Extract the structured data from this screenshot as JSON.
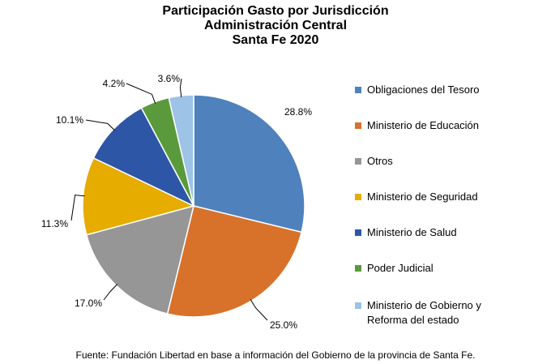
{
  "chart_data": {
    "type": "pie",
    "title": [
      "Participación Gasto por Jurisdicción",
      "Administración Central",
      "Santa Fe 2020"
    ],
    "slices": [
      {
        "name": "Obligaciones del Tesoro",
        "value": 28.8,
        "label": "28.8%",
        "color": "#4F81BD"
      },
      {
        "name": "Ministerio de Educación",
        "value": 25.0,
        "label": "25.0%",
        "color": "#D8722B"
      },
      {
        "name": "Otros",
        "value": 17.0,
        "label": "17.0%",
        "color": "#969696"
      },
      {
        "name": "Ministerio de Seguridad",
        "value": 11.3,
        "label": "11.3%",
        "color": "#E6AC00"
      },
      {
        "name": "Ministerio de Salud",
        "value": 10.1,
        "label": "10.1%",
        "color": "#2E56A6"
      },
      {
        "name": "Poder Judicial",
        "value": 4.2,
        "label": "4.2%",
        "color": "#5B9A3C"
      },
      {
        "name": "Ministerio de Gobierno y Reforma del estado",
        "value": 3.6,
        "label": "3.6%",
        "color": "#9DC3E6"
      }
    ],
    "legend_position": "right"
  },
  "source": "Fuente: Fundación Libertad en base a información del Gobierno de la provincia de Santa Fe."
}
